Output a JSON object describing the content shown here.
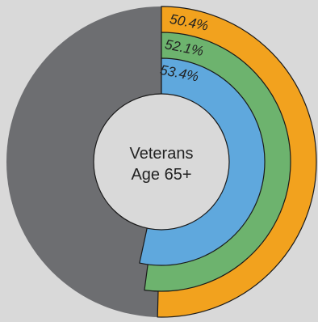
{
  "chart_data": {
    "type": "pie",
    "center_label_lines": [
      "Veterans",
      "Age 65+"
    ],
    "background_color": "#d9d9d9",
    "remainder_color": "#6d6e71",
    "series": [
      {
        "value": 50.4,
        "label": "50.4%",
        "color": "#f2a21e"
      },
      {
        "value": 52.1,
        "label": "52.1%",
        "color": "#6db36e"
      },
      {
        "value": 53.4,
        "label": "53.4%",
        "color": "#5fa8dd"
      }
    ]
  }
}
